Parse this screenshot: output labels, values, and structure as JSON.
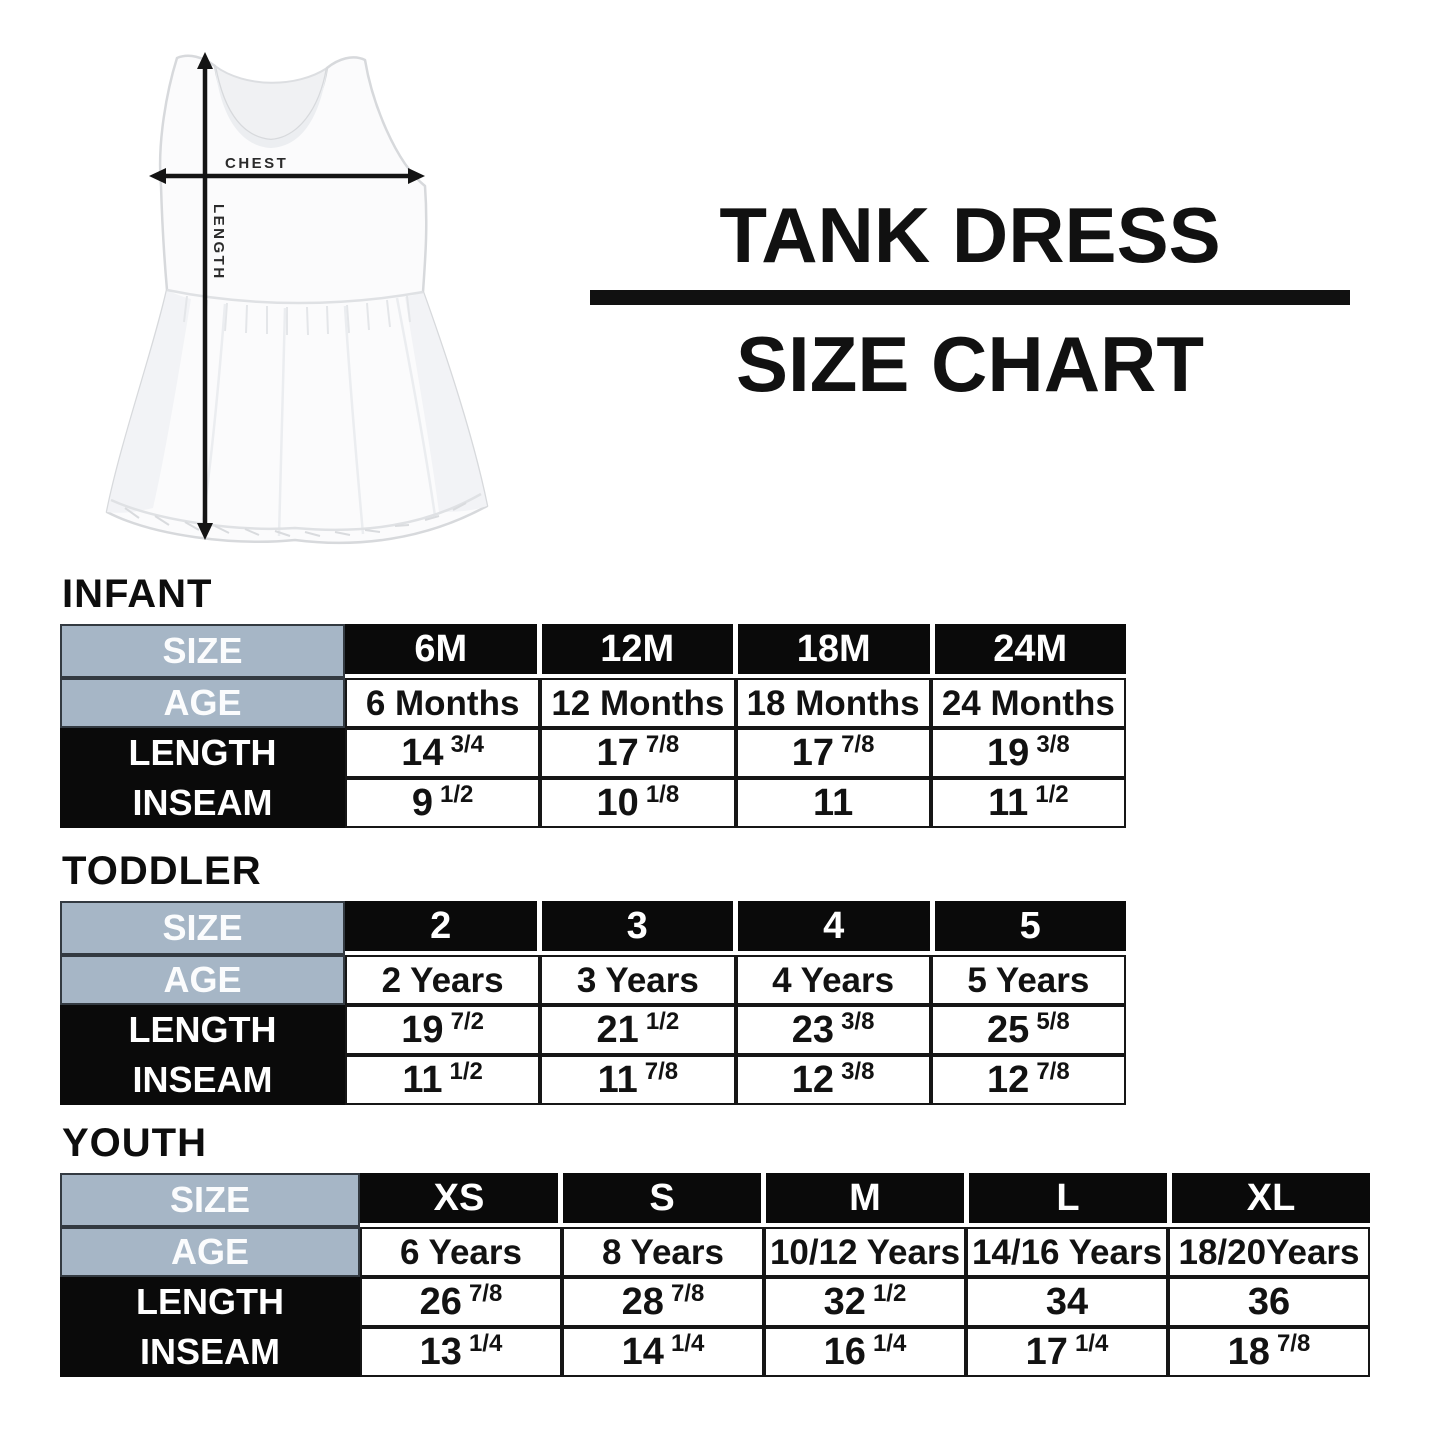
{
  "header": {
    "title_line1": "TANK DRESS",
    "title_line2": "SIZE CHART"
  },
  "diagram": {
    "chest_label": "CHEST",
    "length_label": "LENGTH"
  },
  "colors": {
    "header_blue": "#a6b6c6",
    "header_black": "#0a0a0a",
    "divider_black": "#111111"
  },
  "row_labels": {
    "size": "SIZE",
    "age": "AGE",
    "length": "LENGTH",
    "inseam": "INSEAM"
  },
  "tables": [
    {
      "section": "INFANT",
      "sizes": [
        "6M",
        "12M",
        "18M",
        "24M"
      ],
      "ages": [
        "6 Months",
        "12 Months",
        "18 Months",
        "24 Months"
      ],
      "lengths": [
        "14 3/4",
        "17 7/8",
        "17 7/8",
        "19 3/8"
      ],
      "inseams": [
        "9 1/2",
        "10 1/8",
        "11",
        "11 1/2"
      ]
    },
    {
      "section": "TODDLER",
      "sizes": [
        "2",
        "3",
        "4",
        "5"
      ],
      "ages": [
        "2 Years",
        "3 Years",
        "4 Years",
        "5 Years"
      ],
      "lengths": [
        "19 7/2",
        "21 1/2",
        "23 3/8",
        "25 5/8"
      ],
      "inseams": [
        "11 1/2",
        "11 7/8",
        "12 3/8",
        "12 7/8"
      ]
    },
    {
      "section": "YOUTH",
      "sizes": [
        "XS",
        "S",
        "M",
        "L",
        "XL"
      ],
      "ages": [
        "6 Years",
        "8 Years",
        "10/12 Years",
        "14/16 Years",
        "18/20Years"
      ],
      "lengths": [
        "26 7/8",
        "28 7/8",
        "32 1/2",
        "34",
        "36"
      ],
      "inseams": [
        "13 1/4",
        "14 1/4",
        "16 1/4",
        "17 1/4",
        "18 7/8"
      ]
    }
  ]
}
